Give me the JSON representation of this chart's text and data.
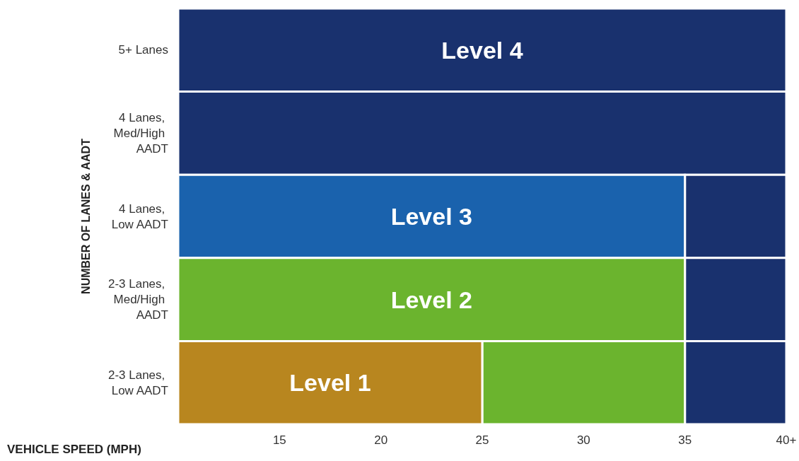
{
  "chart_data": {
    "type": "bar",
    "orientation": "horizontal",
    "xlabel": "VEHICLE SPEED (MPH)",
    "ylabel": "NUMBER OF LANES & AADT",
    "categories": [
      "5+ Lanes",
      "4 Lanes, Med/High AADT",
      "4 Lanes, Low AADT",
      "2-3 Lanes, Med/High AADT",
      "2-3 Lanes, Low AADT"
    ],
    "series": [
      {
        "name": "Level 4",
        "color": "#19316e",
        "values": [
          30,
          30,
          5,
          5,
          5
        ],
        "base": [
          10,
          10,
          35,
          35,
          35
        ]
      },
      {
        "name": "Level 3",
        "color": "#1a62ad",
        "values": [
          null,
          null,
          25,
          null,
          null
        ],
        "base": [
          null,
          null,
          10,
          null,
          null
        ]
      },
      {
        "name": "Level 2",
        "color": "#6bb42e",
        "values": [
          null,
          null,
          null,
          25,
          10
        ],
        "base": [
          null,
          null,
          null,
          10,
          25
        ]
      },
      {
        "name": "Level 1",
        "color": "#b8861f",
        "values": [
          null,
          null,
          null,
          null,
          15
        ],
        "base": [
          null,
          null,
          null,
          null,
          10
        ]
      }
    ],
    "xlim": [
      10,
      40
    ],
    "xticks": [
      15,
      20,
      25,
      30,
      35,
      {
        "value": 40,
        "label": "40+"
      }
    ]
  }
}
